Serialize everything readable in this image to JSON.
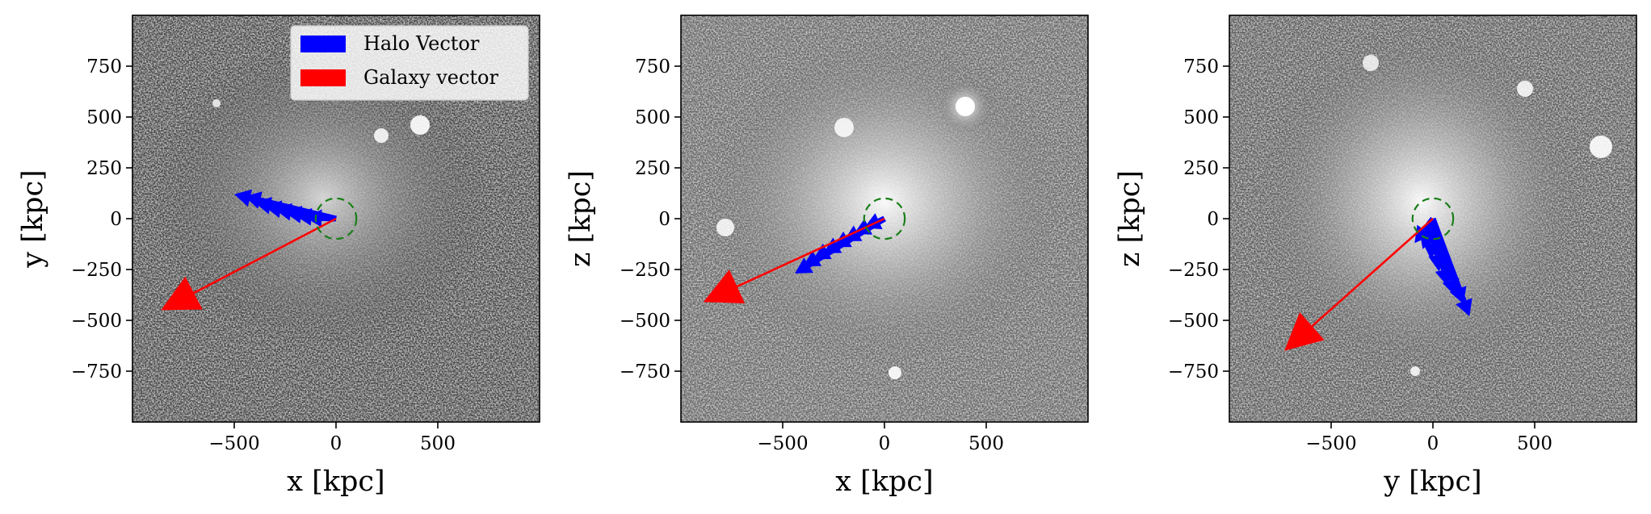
{
  "chart_data": [
    {
      "type": "scatter",
      "title": "",
      "xlabel": "x [kpc]",
      "ylabel": "y [kpc]",
      "xlim": [
        -1000,
        1000
      ],
      "ylim": [
        -1000,
        1000
      ],
      "xticks": [
        -500,
        0,
        500
      ],
      "yticks": [
        -750,
        -500,
        -250,
        0,
        250,
        500,
        750
      ],
      "xtick_labels": [
        "−500",
        "0",
        "500"
      ],
      "ytick_labels": [
        "−750",
        "−500",
        "−250",
        "0",
        "250",
        "500",
        "750"
      ],
      "background": "grayscale dark-matter density projection",
      "circle": {
        "center": [
          0,
          0
        ],
        "radius": 100,
        "color": "#1a7f1a",
        "style": "dashed"
      },
      "galaxy_vector": {
        "start": [
          0,
          0
        ],
        "end": [
          -860,
          -450
        ],
        "color": "#ff0000"
      },
      "halo_vectors": [
        {
          "start": [
            0,
            0
          ],
          "end": [
            -500,
            120
          ]
        },
        {
          "start": [
            0,
            0
          ],
          "end": [
            -450,
            110
          ]
        },
        {
          "start": [
            0,
            0
          ],
          "end": [
            -400,
            80
          ]
        },
        {
          "start": [
            0,
            0
          ],
          "end": [
            -350,
            60
          ]
        },
        {
          "start": [
            0,
            0
          ],
          "end": [
            -300,
            45
          ]
        },
        {
          "start": [
            0,
            0
          ],
          "end": [
            -250,
            30
          ]
        },
        {
          "start": [
            0,
            0
          ],
          "end": [
            -200,
            15
          ]
        },
        {
          "start": [
            0,
            0
          ],
          "end": [
            -150,
            5
          ]
        }
      ],
      "halo_color": "#0000ff",
      "legend": {
        "position": "upper right",
        "entries": [
          {
            "label": "Halo Vector",
            "color": "#0000ff"
          },
          {
            "label": "Galaxy vector",
            "color": "#ff0000"
          }
        ]
      }
    },
    {
      "type": "scatter",
      "title": "",
      "xlabel": "x [kpc]",
      "ylabel": "z [kpc]",
      "xlim": [
        -1000,
        1000
      ],
      "ylim": [
        -1000,
        1000
      ],
      "xticks": [
        -500,
        0,
        500
      ],
      "yticks": [
        -750,
        -500,
        -250,
        0,
        250,
        500,
        750
      ],
      "xtick_labels": [
        "−500",
        "0",
        "500"
      ],
      "ytick_labels": [
        "−750",
        "−500",
        "−250",
        "0",
        "250",
        "500",
        "750"
      ],
      "background": "grayscale dark-matter density projection",
      "circle": {
        "center": [
          0,
          0
        ],
        "radius": 100,
        "color": "#1a7f1a",
        "style": "dashed"
      },
      "galaxy_vector": {
        "start": [
          0,
          0
        ],
        "end": [
          -890,
          -410
        ],
        "color": "#ff0000"
      },
      "halo_vectors": [
        {
          "start": [
            0,
            0
          ],
          "end": [
            -440,
            -270
          ]
        },
        {
          "start": [
            0,
            0
          ],
          "end": [
            -400,
            -235
          ]
        },
        {
          "start": [
            0,
            0
          ],
          "end": [
            -350,
            -200
          ]
        },
        {
          "start": [
            0,
            0
          ],
          "end": [
            -300,
            -170
          ]
        },
        {
          "start": [
            0,
            0
          ],
          "end": [
            -250,
            -140
          ]
        },
        {
          "start": [
            0,
            0
          ],
          "end": [
            -200,
            -110
          ]
        },
        {
          "start": [
            0,
            0
          ],
          "end": [
            -150,
            -75
          ]
        },
        {
          "start": [
            0,
            0
          ],
          "end": [
            -100,
            -45
          ]
        }
      ],
      "halo_color": "#0000ff"
    },
    {
      "type": "scatter",
      "title": "",
      "xlabel": "y [kpc]",
      "ylabel": "z [kpc]",
      "xlim": [
        -1000,
        1000
      ],
      "ylim": [
        -1000,
        1000
      ],
      "xticks": [
        -500,
        0,
        500
      ],
      "yticks": [
        -750,
        -500,
        -250,
        0,
        250,
        500,
        750
      ],
      "xtick_labels": [
        "−500",
        "0",
        "500"
      ],
      "ytick_labels": [
        "−750",
        "−500",
        "−250",
        "0",
        "250",
        "500",
        "750"
      ],
      "background": "grayscale dark-matter density projection",
      "circle": {
        "center": [
          0,
          0
        ],
        "radius": 100,
        "color": "#1a7f1a",
        "style": "dashed"
      },
      "galaxy_vector": {
        "start": [
          0,
          0
        ],
        "end": [
          -730,
          -650
        ],
        "color": "#ff0000"
      },
      "halo_vectors": [
        {
          "start": [
            0,
            0
          ],
          "end": [
            180,
            -480
          ]
        },
        {
          "start": [
            0,
            0
          ],
          "end": [
            150,
            -420
          ]
        },
        {
          "start": [
            0,
            0
          ],
          "end": [
            110,
            -380
          ]
        },
        {
          "start": [
            0,
            0
          ],
          "end": [
            70,
            -330
          ]
        },
        {
          "start": [
            0,
            0
          ],
          "end": [
            30,
            -260
          ]
        },
        {
          "start": [
            0,
            0
          ],
          "end": [
            -10,
            -200
          ]
        },
        {
          "start": [
            0,
            0
          ],
          "end": [
            -50,
            -150
          ]
        },
        {
          "start": [
            0,
            0
          ],
          "end": [
            -90,
            -120
          ]
        }
      ],
      "halo_color": "#0000ff"
    }
  ]
}
